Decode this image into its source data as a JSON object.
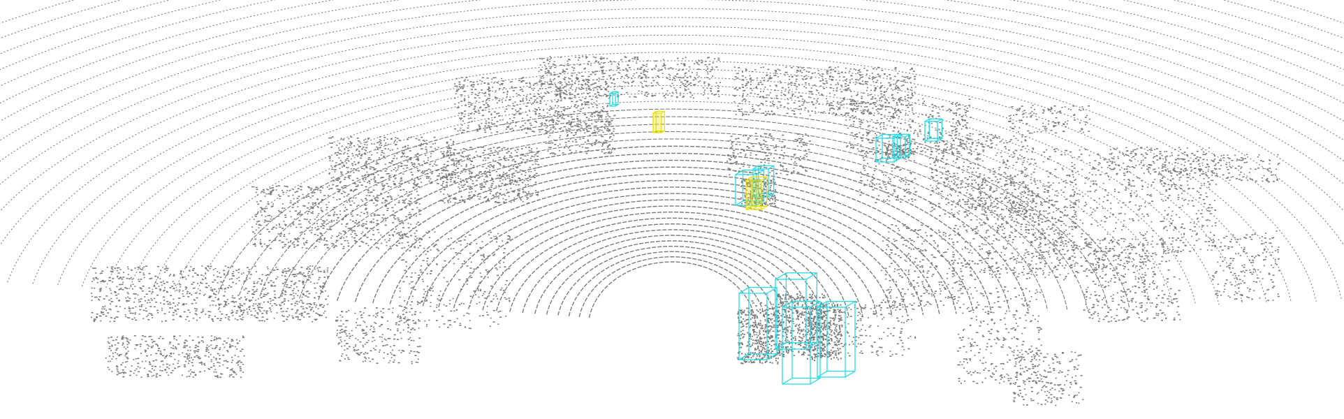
{
  "colors": {
    "background": "#ffffff",
    "points": "#7a7a7a",
    "car_box": "#22dde6",
    "pedestrian_box": "#e8e000"
  },
  "detections": [
    {
      "name": "car-box-far-left",
      "class": "car"
    },
    {
      "name": "pedestrian-box-far",
      "class": "pedestrian"
    },
    {
      "name": "car-box-center-a",
      "class": "car"
    },
    {
      "name": "car-box-center-b",
      "class": "car"
    },
    {
      "name": "pedestrian-box-center",
      "class": "pedestrian"
    },
    {
      "name": "car-box-right-a",
      "class": "car"
    },
    {
      "name": "car-box-right-b",
      "class": "car"
    },
    {
      "name": "car-box-right-far",
      "class": "car"
    },
    {
      "name": "car-box-near-1",
      "class": "car"
    },
    {
      "name": "car-box-near-2",
      "class": "car"
    },
    {
      "name": "car-box-near-3",
      "class": "car"
    },
    {
      "name": "car-box-near-4",
      "class": "car"
    }
  ]
}
